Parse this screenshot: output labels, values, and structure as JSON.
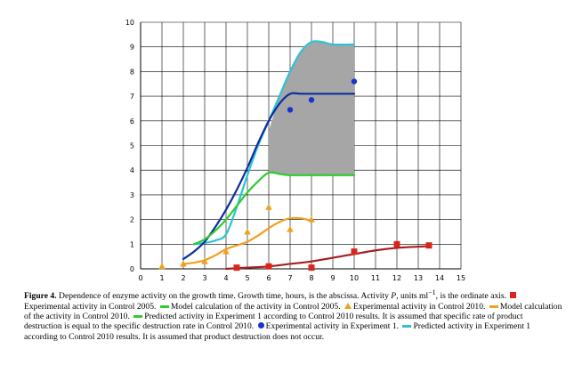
{
  "chart_data": {
    "type": "line",
    "xlim": [
      0,
      15
    ],
    "ylim": [
      0,
      10
    ],
    "x_ticks": [
      "0",
      "1",
      "2",
      "3",
      "4",
      "5",
      "6",
      "7",
      "8",
      "9",
      "10",
      "11",
      "12",
      "13",
      "14",
      "15"
    ],
    "y_ticks": [
      "0",
      "1",
      "2",
      "3",
      "4",
      "5",
      "6",
      "7",
      "8",
      "9",
      "10"
    ],
    "grid": true,
    "shaded_region": {
      "x": [
        6,
        6.5,
        7,
        7.5,
        8,
        8.5,
        9,
        10
      ],
      "upper": [
        5.6,
        7.0,
        8.0,
        8.8,
        9.2,
        9.2,
        9.1,
        9.1
      ],
      "lower": [
        3.9,
        3.85,
        3.8,
        3.8,
        3.8,
        3.8,
        3.8,
        3.8
      ],
      "color": "#a6a6a6"
    },
    "series": [
      {
        "type": "line",
        "color": "#2bc2d6",
        "x": [
          2.5,
          3,
          3.5,
          4,
          4.5,
          5,
          5.5,
          6,
          6.5,
          7,
          7.5,
          8,
          8.5,
          9,
          10
        ],
        "y": [
          1.0,
          1.05,
          1.15,
          1.4,
          2.5,
          3.8,
          5.0,
          6.0,
          7.0,
          8.0,
          8.8,
          9.2,
          9.2,
          9.1,
          9.1
        ]
      },
      {
        "type": "line",
        "color": "#0d2d9e",
        "x": [
          2,
          2.5,
          3,
          3.5,
          4,
          4.5,
          5,
          5.5,
          6,
          6.5,
          7,
          7.5,
          8,
          9,
          10
        ],
        "y": [
          0.4,
          0.7,
          1.1,
          1.7,
          2.4,
          3.2,
          4.1,
          5.1,
          6.0,
          6.7,
          7.1,
          7.1,
          7.1,
          7.1,
          7.1
        ]
      },
      {
        "type": "line",
        "color": "#2ecc2e",
        "x": [
          2.5,
          3,
          3.5,
          4,
          4.5,
          5,
          5.5,
          6,
          6.5,
          7,
          8,
          9,
          10
        ],
        "y": [
          1.0,
          1.2,
          1.55,
          2.0,
          2.55,
          3.1,
          3.55,
          3.9,
          3.85,
          3.8,
          3.8,
          3.8,
          3.8
        ]
      },
      {
        "type": "line",
        "color": "#f0a020",
        "x": [
          2,
          2.5,
          3,
          3.5,
          4,
          4.5,
          5,
          5.5,
          6,
          6.5,
          7,
          7.5,
          8
        ],
        "y": [
          0.2,
          0.25,
          0.35,
          0.55,
          0.8,
          0.95,
          1.1,
          1.35,
          1.65,
          1.9,
          2.05,
          2.05,
          1.95
        ]
      },
      {
        "type": "line",
        "color": "#a52020",
        "x": [
          4,
          5,
          6,
          7,
          8,
          9,
          10,
          11,
          12,
          13,
          13.5
        ],
        "y": [
          0.0,
          0.05,
          0.1,
          0.2,
          0.3,
          0.45,
          0.6,
          0.75,
          0.85,
          0.9,
          0.92
        ]
      },
      {
        "type": "scatter",
        "marker": "square",
        "color": "#d9261c",
        "x": [
          4.5,
          6,
          8,
          10,
          12,
          13.5
        ],
        "y": [
          0.05,
          0.1,
          0.05,
          0.7,
          1.0,
          0.95
        ]
      },
      {
        "type": "scatter",
        "marker": "triangle",
        "color": "#f0a020",
        "x": [
          1,
          2,
          3,
          4,
          5,
          6,
          7,
          8
        ],
        "y": [
          0.1,
          0.2,
          0.3,
          0.7,
          1.5,
          2.5,
          1.6,
          2.0
        ]
      },
      {
        "type": "scatter",
        "marker": "circle",
        "color": "#1a33cc",
        "x": [
          7,
          8,
          10
        ],
        "y": [
          6.45,
          6.85,
          7.6
        ]
      }
    ]
  },
  "caption": {
    "label": "Figure 4.",
    "part1": "Dependence of enzyme activity on the growth time. Growth time, hours, is the abscissa. Activity ",
    "p_symbol": "P",
    "part2": ", units ml",
    "exponent": "−1",
    "part3": ", is the ordinate axis.",
    "legend_1": "Experimental activity in Control 2005.",
    "legend_2": "Model calculation of the activity in Control 2005.",
    "legend_3": "Experimental activity in Control 2010.",
    "legend_4": "Model calculation of the activity in Control 2010.",
    "legend_5": "Predicted activity in Experiment 1 according to Control 2010 results.",
    "note_1": "It is assumed that specific rate of product destruction is equal to the specific destruction rate in Control 2010.",
    "legend_6": "Experimental activity in Experiment 1.",
    "legend_7": "Predicted activity in Experiment 1 according to Control 2010 results. It is assumed that product destruction does not occur."
  },
  "colors": {
    "square": "#d9261c",
    "red_line": "#a52020",
    "triangle": "#f0a020",
    "orange_line": "#f0a020",
    "green_line": "#2ecc2e",
    "dot": "#1a33cc",
    "dark_blue_line": "#0d2d9e",
    "cyan_line": "#2bc2d6"
  }
}
